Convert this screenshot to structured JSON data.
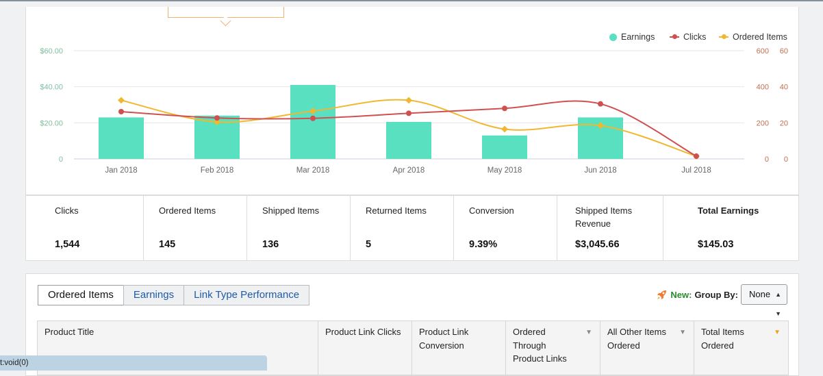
{
  "legend": {
    "earnings": "Earnings",
    "clicks": "Clicks",
    "ordered": "Ordered Items"
  },
  "colors": {
    "earnings_bar": "#58e0c0",
    "clicks_line": "#d05050",
    "ordered_line": "#f0b830"
  },
  "chart_data": {
    "type": "bar",
    "categories": [
      "Jan 2018",
      "Feb 2018",
      "Mar 2018",
      "Apr 2018",
      "May 2018",
      "Jun 2018",
      "Jul 2018"
    ],
    "y_left_ticks": [
      "$60.00",
      "$40.00",
      "$20.00",
      "0"
    ],
    "y_right_ticks_1": [
      "600",
      "400",
      "200",
      "0"
    ],
    "y_right_ticks_2": [
      "60",
      "40",
      "20",
      "0"
    ],
    "ylim_left": [
      0,
      60
    ],
    "ylim_right_clicks": [
      0,
      600
    ],
    "ylim_right_ordered": [
      0,
      60
    ],
    "grid": true,
    "legend_position": "top-right",
    "series": [
      {
        "name": "Earnings",
        "type": "bar",
        "axis": "left",
        "values": [
          23,
          24,
          41,
          20.5,
          13,
          23,
          0
        ]
      },
      {
        "name": "Clicks",
        "type": "line",
        "axis": "right",
        "values": [
          262,
          227,
          225,
          253,
          280,
          305,
          15
        ]
      },
      {
        "name": "Ordered Items",
        "type": "line",
        "axis": "right2",
        "values": [
          32.5,
          20.5,
          26.5,
          32.5,
          16.5,
          18.5,
          1.5
        ]
      }
    ]
  },
  "stats": [
    {
      "label": "Clicks",
      "value": "1,544"
    },
    {
      "label": "Ordered Items",
      "value": "145"
    },
    {
      "label": "Shipped Items",
      "value": "136"
    },
    {
      "label": "Returned Items",
      "value": "5"
    },
    {
      "label": "Conversion",
      "value": "9.39%"
    },
    {
      "label": "Shipped Items Revenue",
      "value": "$3,045.66"
    },
    {
      "label": "Total Earnings",
      "value": "$145.03"
    }
  ],
  "tabs": [
    "Ordered Items",
    "Earnings",
    "Link Type Performance"
  ],
  "groupby": {
    "new_label": "New:",
    "label": "Group By:",
    "value": "None"
  },
  "columns": [
    {
      "label": "Product Title"
    },
    {
      "label": "Product Link Clicks"
    },
    {
      "label": "Product Link Conversion"
    },
    {
      "label": "Ordered Through Product Links"
    },
    {
      "label": "All Other Items Ordered"
    },
    {
      "label": "Total Items Ordered"
    }
  ],
  "status_text": "t:void(0)"
}
